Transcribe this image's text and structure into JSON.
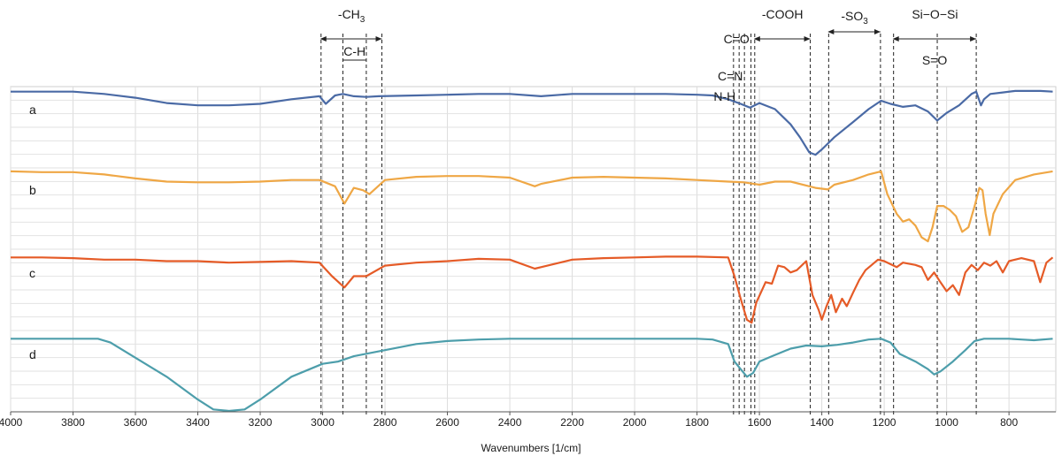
{
  "chart_data": {
    "type": "line",
    "xlabel": "Wavenumbers [1/cm]",
    "xlim": [
      4000,
      650
    ],
    "x_reversed": true,
    "grid": true,
    "x_ticks": [
      4000,
      3800,
      3600,
      3400,
      3200,
      3000,
      2800,
      2600,
      2400,
      2200,
      2000,
      1800,
      1600,
      1400,
      1200,
      1000,
      800
    ],
    "series": [
      {
        "name": "a",
        "color": "#4a6aa5",
        "points": [
          [
            4000,
            0.02
          ],
          [
            3900,
            0.02
          ],
          [
            3800,
            0.02
          ],
          [
            3700,
            0.05
          ],
          [
            3600,
            0.1
          ],
          [
            3500,
            0.17
          ],
          [
            3400,
            0.2
          ],
          [
            3300,
            0.2
          ],
          [
            3200,
            0.18
          ],
          [
            3100,
            0.12
          ],
          [
            3010,
            0.08
          ],
          [
            2990,
            0.18
          ],
          [
            2960,
            0.07
          ],
          [
            2935,
            0.05
          ],
          [
            2900,
            0.08
          ],
          [
            2860,
            0.09
          ],
          [
            2820,
            0.08
          ],
          [
            2700,
            0.07
          ],
          [
            2600,
            0.06
          ],
          [
            2500,
            0.05
          ],
          [
            2400,
            0.05
          ],
          [
            2300,
            0.08
          ],
          [
            2200,
            0.05
          ],
          [
            2100,
            0.05
          ],
          [
            2000,
            0.05
          ],
          [
            1900,
            0.05
          ],
          [
            1800,
            0.06
          ],
          [
            1750,
            0.07
          ],
          [
            1700,
            0.12
          ],
          [
            1660,
            0.18
          ],
          [
            1630,
            0.23
          ],
          [
            1600,
            0.17
          ],
          [
            1550,
            0.25
          ],
          [
            1500,
            0.45
          ],
          [
            1470,
            0.62
          ],
          [
            1440,
            0.82
          ],
          [
            1420,
            0.85
          ],
          [
            1400,
            0.78
          ],
          [
            1360,
            0.62
          ],
          [
            1300,
            0.42
          ],
          [
            1250,
            0.25
          ],
          [
            1210,
            0.14
          ],
          [
            1180,
            0.18
          ],
          [
            1140,
            0.22
          ],
          [
            1100,
            0.2
          ],
          [
            1060,
            0.28
          ],
          [
            1030,
            0.4
          ],
          [
            1000,
            0.3
          ],
          [
            960,
            0.2
          ],
          [
            920,
            0.05
          ],
          [
            905,
            0.02
          ],
          [
            890,
            0.2
          ],
          [
            880,
            0.12
          ],
          [
            860,
            0.05
          ],
          [
            820,
            0.03
          ],
          [
            780,
            0.01
          ],
          [
            700,
            0.01
          ],
          [
            660,
            0.02
          ]
        ]
      },
      {
        "name": "b",
        "color": "#efa745",
        "points": [
          [
            4000,
            0.01
          ],
          [
            3900,
            0.02
          ],
          [
            3800,
            0.02
          ],
          [
            3700,
            0.05
          ],
          [
            3600,
            0.1
          ],
          [
            3500,
            0.14
          ],
          [
            3400,
            0.15
          ],
          [
            3300,
            0.15
          ],
          [
            3200,
            0.14
          ],
          [
            3100,
            0.12
          ],
          [
            3010,
            0.12
          ],
          [
            2960,
            0.2
          ],
          [
            2930,
            0.42
          ],
          [
            2900,
            0.22
          ],
          [
            2870,
            0.25
          ],
          [
            2850,
            0.3
          ],
          [
            2800,
            0.12
          ],
          [
            2700,
            0.08
          ],
          [
            2600,
            0.07
          ],
          [
            2500,
            0.07
          ],
          [
            2400,
            0.09
          ],
          [
            2320,
            0.2
          ],
          [
            2300,
            0.17
          ],
          [
            2200,
            0.09
          ],
          [
            2100,
            0.08
          ],
          [
            2000,
            0.09
          ],
          [
            1900,
            0.1
          ],
          [
            1800,
            0.12
          ],
          [
            1700,
            0.14
          ],
          [
            1650,
            0.15
          ],
          [
            1600,
            0.18
          ],
          [
            1550,
            0.14
          ],
          [
            1500,
            0.14
          ],
          [
            1440,
            0.2
          ],
          [
            1420,
            0.22
          ],
          [
            1380,
            0.24
          ],
          [
            1360,
            0.18
          ],
          [
            1300,
            0.12
          ],
          [
            1250,
            0.05
          ],
          [
            1210,
            0.01
          ],
          [
            1190,
            0.3
          ],
          [
            1160,
            0.55
          ],
          [
            1140,
            0.65
          ],
          [
            1120,
            0.62
          ],
          [
            1100,
            0.7
          ],
          [
            1080,
            0.85
          ],
          [
            1060,
            0.9
          ],
          [
            1045,
            0.72
          ],
          [
            1030,
            0.45
          ],
          [
            1010,
            0.45
          ],
          [
            990,
            0.5
          ],
          [
            970,
            0.58
          ],
          [
            950,
            0.78
          ],
          [
            930,
            0.72
          ],
          [
            910,
            0.45
          ],
          [
            895,
            0.22
          ],
          [
            885,
            0.25
          ],
          [
            875,
            0.55
          ],
          [
            862,
            0.82
          ],
          [
            850,
            0.55
          ],
          [
            820,
            0.3
          ],
          [
            780,
            0.12
          ],
          [
            720,
            0.05
          ],
          [
            660,
            0.01
          ]
        ]
      },
      {
        "name": "c",
        "color": "#e55b27",
        "points": [
          [
            4000,
            0.05
          ],
          [
            3900,
            0.05
          ],
          [
            3800,
            0.06
          ],
          [
            3700,
            0.08
          ],
          [
            3600,
            0.08
          ],
          [
            3500,
            0.1
          ],
          [
            3400,
            0.1
          ],
          [
            3300,
            0.12
          ],
          [
            3200,
            0.11
          ],
          [
            3100,
            0.1
          ],
          [
            3010,
            0.12
          ],
          [
            2970,
            0.3
          ],
          [
            2930,
            0.45
          ],
          [
            2900,
            0.3
          ],
          [
            2860,
            0.3
          ],
          [
            2800,
            0.16
          ],
          [
            2700,
            0.12
          ],
          [
            2600,
            0.1
          ],
          [
            2500,
            0.07
          ],
          [
            2400,
            0.08
          ],
          [
            2320,
            0.2
          ],
          [
            2300,
            0.18
          ],
          [
            2200,
            0.08
          ],
          [
            2100,
            0.06
          ],
          [
            2000,
            0.05
          ],
          [
            1900,
            0.04
          ],
          [
            1800,
            0.04
          ],
          [
            1700,
            0.05
          ],
          [
            1680,
            0.3
          ],
          [
            1660,
            0.6
          ],
          [
            1640,
            0.88
          ],
          [
            1625,
            0.92
          ],
          [
            1610,
            0.65
          ],
          [
            1580,
            0.38
          ],
          [
            1560,
            0.4
          ],
          [
            1540,
            0.16
          ],
          [
            1520,
            0.18
          ],
          [
            1500,
            0.25
          ],
          [
            1480,
            0.22
          ],
          [
            1450,
            0.1
          ],
          [
            1430,
            0.55
          ],
          [
            1410,
            0.75
          ],
          [
            1400,
            0.88
          ],
          [
            1385,
            0.7
          ],
          [
            1370,
            0.55
          ],
          [
            1355,
            0.78
          ],
          [
            1335,
            0.6
          ],
          [
            1320,
            0.7
          ],
          [
            1300,
            0.52
          ],
          [
            1280,
            0.35
          ],
          [
            1260,
            0.22
          ],
          [
            1240,
            0.15
          ],
          [
            1220,
            0.08
          ],
          [
            1200,
            0.1
          ],
          [
            1160,
            0.18
          ],
          [
            1140,
            0.12
          ],
          [
            1100,
            0.15
          ],
          [
            1080,
            0.18
          ],
          [
            1060,
            0.35
          ],
          [
            1040,
            0.25
          ],
          [
            1020,
            0.38
          ],
          [
            1000,
            0.5
          ],
          [
            980,
            0.42
          ],
          [
            960,
            0.55
          ],
          [
            940,
            0.25
          ],
          [
            920,
            0.15
          ],
          [
            900,
            0.22
          ],
          [
            880,
            0.12
          ],
          [
            860,
            0.16
          ],
          [
            840,
            0.1
          ],
          [
            820,
            0.25
          ],
          [
            800,
            0.1
          ],
          [
            760,
            0.06
          ],
          [
            720,
            0.1
          ],
          [
            700,
            0.38
          ],
          [
            680,
            0.12
          ],
          [
            660,
            0.05
          ]
        ]
      },
      {
        "name": "d",
        "color": "#4d9eab",
        "points": [
          [
            4000,
            0.05
          ],
          [
            3900,
            0.05
          ],
          [
            3800,
            0.05
          ],
          [
            3720,
            0.05
          ],
          [
            3680,
            0.1
          ],
          [
            3600,
            0.3
          ],
          [
            3500,
            0.55
          ],
          [
            3400,
            0.85
          ],
          [
            3350,
            0.98
          ],
          [
            3300,
            1.0
          ],
          [
            3250,
            0.98
          ],
          [
            3200,
            0.85
          ],
          [
            3100,
            0.55
          ],
          [
            3000,
            0.38
          ],
          [
            2950,
            0.35
          ],
          [
            2900,
            0.28
          ],
          [
            2800,
            0.2
          ],
          [
            2700,
            0.12
          ],
          [
            2600,
            0.08
          ],
          [
            2500,
            0.06
          ],
          [
            2400,
            0.05
          ],
          [
            2200,
            0.05
          ],
          [
            2000,
            0.05
          ],
          [
            1800,
            0.05
          ],
          [
            1750,
            0.06
          ],
          [
            1700,
            0.12
          ],
          [
            1680,
            0.35
          ],
          [
            1660,
            0.45
          ],
          [
            1640,
            0.55
          ],
          [
            1620,
            0.5
          ],
          [
            1600,
            0.35
          ],
          [
            1560,
            0.28
          ],
          [
            1500,
            0.18
          ],
          [
            1450,
            0.14
          ],
          [
            1400,
            0.15
          ],
          [
            1350,
            0.13
          ],
          [
            1300,
            0.1
          ],
          [
            1250,
            0.06
          ],
          [
            1210,
            0.05
          ],
          [
            1180,
            0.1
          ],
          [
            1150,
            0.25
          ],
          [
            1100,
            0.35
          ],
          [
            1060,
            0.45
          ],
          [
            1040,
            0.52
          ],
          [
            1020,
            0.48
          ],
          [
            980,
            0.35
          ],
          [
            940,
            0.2
          ],
          [
            910,
            0.08
          ],
          [
            880,
            0.05
          ],
          [
            840,
            0.05
          ],
          [
            800,
            0.05
          ],
          [
            760,
            0.06
          ],
          [
            720,
            0.07
          ],
          [
            660,
            0.05
          ]
        ]
      }
    ],
    "reference_lines": [
      {
        "x": 3005,
        "style": "dashed"
      },
      {
        "x": 2935,
        "style": "dashed"
      },
      {
        "x": 2860,
        "style": "dashed"
      },
      {
        "x": 2810,
        "style": "dashed"
      },
      {
        "x": 1683,
        "style": "dashed"
      },
      {
        "x": 1665,
        "style": "dashed"
      },
      {
        "x": 1648,
        "style": "dashed"
      },
      {
        "x": 1627,
        "style": "dashed"
      },
      {
        "x": 1615,
        "style": "dashed"
      },
      {
        "x": 1437,
        "style": "dashed"
      },
      {
        "x": 1378,
        "style": "dashed"
      },
      {
        "x": 1212,
        "style": "dashed"
      },
      {
        "x": 1170,
        "style": "dashed"
      },
      {
        "x": 1030,
        "style": "dashed"
      },
      {
        "x": 905,
        "style": "dashed"
      }
    ],
    "annotations": [
      {
        "label": "-CH",
        "sub": "3",
        "from": 3005,
        "to": 2810,
        "arrow": true,
        "level": 0
      },
      {
        "label": "C-H",
        "from": 2935,
        "to": 2860,
        "arrow": false,
        "level": 1
      },
      {
        "label": "C=O",
        "at": 1645,
        "level": 0
      },
      {
        "label": "C=N",
        "at": 1665,
        "level": 1
      },
      {
        "label": "N-H",
        "at": 1683,
        "level": 2
      },
      {
        "label": "-COOH",
        "from": 1615,
        "to": 1437,
        "arrow": true,
        "level": 0
      },
      {
        "label": "-SO",
        "sub": "3",
        "from": 1378,
        "to": 1212,
        "arrow": true,
        "level": -1
      },
      {
        "label": "Si−O−Si",
        "from": 1170,
        "to": 905,
        "arrow": true,
        "level": 0
      },
      {
        "label": "S=O",
        "at": 1030,
        "level": 1
      }
    ]
  }
}
